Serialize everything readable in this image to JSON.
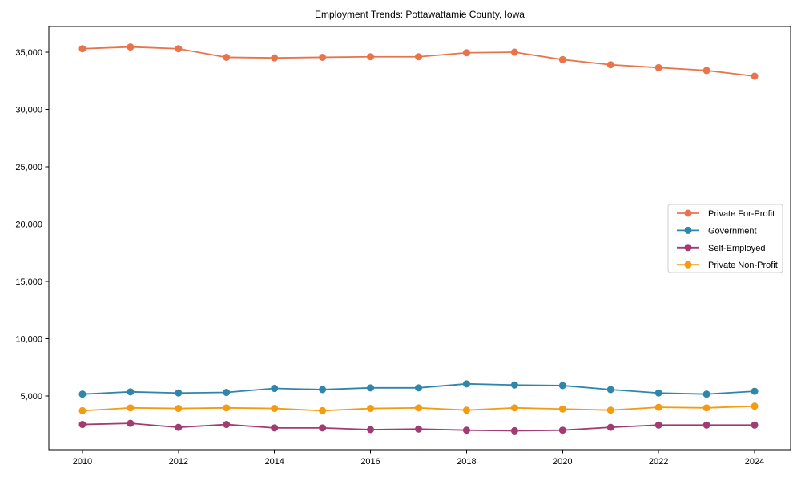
{
  "figure": {
    "title": "Employment Trends: Pottawattamie County, Iowa",
    "background": "#ffffff"
  },
  "chart_data": {
    "type": "line",
    "title": "Employment Trends: Pottawattamie County, Iowa",
    "xlabel": "",
    "ylabel": "",
    "grid": false,
    "marker": "circle",
    "legend_position": "center-right",
    "legend_border_color": "#cccccc",
    "spine_color": "#000000",
    "x": [
      2010,
      2011,
      2012,
      2013,
      2014,
      2015,
      2016,
      2017,
      2018,
      2019,
      2020,
      2021,
      2022,
      2023,
      2024
    ],
    "x_tick_values": [
      2010,
      2012,
      2014,
      2016,
      2018,
      2020,
      2022,
      2024
    ],
    "x_tick_labels": [
      "2010",
      "2012",
      "2014",
      "2016",
      "2018",
      "2020",
      "2022",
      "2024"
    ],
    "y_tick_values": [
      5000,
      10000,
      15000,
      20000,
      25000,
      30000,
      35000
    ],
    "y_tick_labels": [
      "5,000",
      "10,000",
      "15,000",
      "20,000",
      "25,000",
      "30,000",
      "35,000"
    ],
    "xlim": [
      2009.3,
      2024.75
    ],
    "ylim": [
      300,
      37240
    ],
    "series": [
      {
        "name": "Private For-Profit",
        "slug": "private-for-profit",
        "color": "#E8744B",
        "values": [
          35300,
          35450,
          35300,
          34550,
          34500,
          34550,
          34600,
          34600,
          34950,
          35000,
          34350,
          33900,
          33650,
          33400,
          32900
        ]
      },
      {
        "name": "Government",
        "slug": "government",
        "color": "#2E86AB",
        "values": [
          5150,
          5350,
          5250,
          5300,
          5650,
          5550,
          5700,
          5700,
          6050,
          5950,
          5900,
          5550,
          5250,
          5150,
          5400
        ]
      },
      {
        "name": "Self-Employed",
        "slug": "self-employed",
        "color": "#A23B72",
        "values": [
          2500,
          2600,
          2250,
          2500,
          2200,
          2200,
          2050,
          2100,
          2000,
          1950,
          2000,
          2250,
          2450,
          2450,
          2450
        ]
      },
      {
        "name": "Private Non-Profit",
        "slug": "private-non-profit",
        "color": "#F39C12",
        "values": [
          3700,
          3950,
          3900,
          3950,
          3900,
          3700,
          3900,
          3950,
          3750,
          3950,
          3850,
          3750,
          4000,
          3950,
          4100
        ]
      }
    ]
  }
}
